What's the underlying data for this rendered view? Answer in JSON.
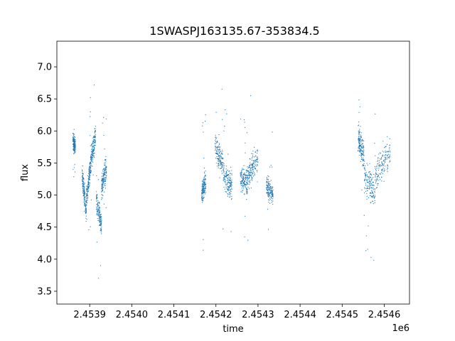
{
  "chart_data": {
    "type": "scatter",
    "title": "1SWASPJ163135.67-353834.5",
    "xlabel": "time",
    "ylabel": "flux",
    "x_offset_label": "1e6",
    "xlim": [
      2453822,
      2454660
    ],
    "ylim": [
      3.3,
      7.4
    ],
    "xticks": [
      2453900,
      2454000,
      2454100,
      2454200,
      2454300,
      2454400,
      2454500,
      2454600
    ],
    "xtick_labels": [
      "2.4539",
      "2.4540",
      "2.4541",
      "2.4542",
      "2.4543",
      "2.4544",
      "2.4545",
      "2.4546"
    ],
    "yticks": [
      3.5,
      4.0,
      4.5,
      5.0,
      5.5,
      6.0,
      6.5,
      7.0
    ],
    "ytick_labels": [
      "3.5",
      "4.0",
      "4.5",
      "5.0",
      "5.5",
      "6.0",
      "6.5",
      "7.0"
    ],
    "grid": false,
    "point_color": "#1f77b4",
    "segments": [
      {
        "x": [
          2453860,
          2453866
        ],
        "y": [
          5.85,
          5.75
        ],
        "spread": 0.18
      },
      {
        "x": [
          2453882,
          2453892
        ],
        "y": [
          5.3,
          4.75
        ],
        "spread": 0.25
      },
      {
        "x": [
          2453892,
          2453902
        ],
        "y": [
          4.9,
          5.45
        ],
        "spread": 0.25
      },
      {
        "x": [
          2453902,
          2453914
        ],
        "y": [
          5.5,
          5.95
        ],
        "spread": 0.3
      },
      {
        "x": [
          2453916,
          2453928
        ],
        "y": [
          4.9,
          4.55
        ],
        "spread": 0.25
      },
      {
        "x": [
          2453928,
          2453940
        ],
        "y": [
          5.1,
          5.45
        ],
        "spread": 0.3
      },
      {
        "x": [
          2454166,
          2454176
        ],
        "y": [
          5.05,
          5.2
        ],
        "spread": 0.25
      },
      {
        "x": [
          2454198,
          2454218
        ],
        "y": [
          5.75,
          5.45
        ],
        "spread": 0.3
      },
      {
        "x": [
          2454218,
          2454238
        ],
        "y": [
          5.3,
          5.15
        ],
        "spread": 0.3
      },
      {
        "x": [
          2454258,
          2454275
        ],
        "y": [
          5.25,
          5.2
        ],
        "spread": 0.3
      },
      {
        "x": [
          2454275,
          2454300
        ],
        "y": [
          5.3,
          5.55
        ],
        "spread": 0.3
      },
      {
        "x": [
          2454320,
          2454336
        ],
        "y": [
          5.15,
          5.0
        ],
        "spread": 0.25
      },
      {
        "x": [
          2454538,
          2454552
        ],
        "y": [
          5.9,
          5.6
        ],
        "spread": 0.3
      },
      {
        "x": [
          2454552,
          2454578
        ],
        "y": [
          5.3,
          5.0
        ],
        "spread": 0.35
      },
      {
        "x": [
          2454578,
          2454614
        ],
        "y": [
          5.3,
          5.7
        ],
        "spread": 0.35
      }
    ]
  }
}
